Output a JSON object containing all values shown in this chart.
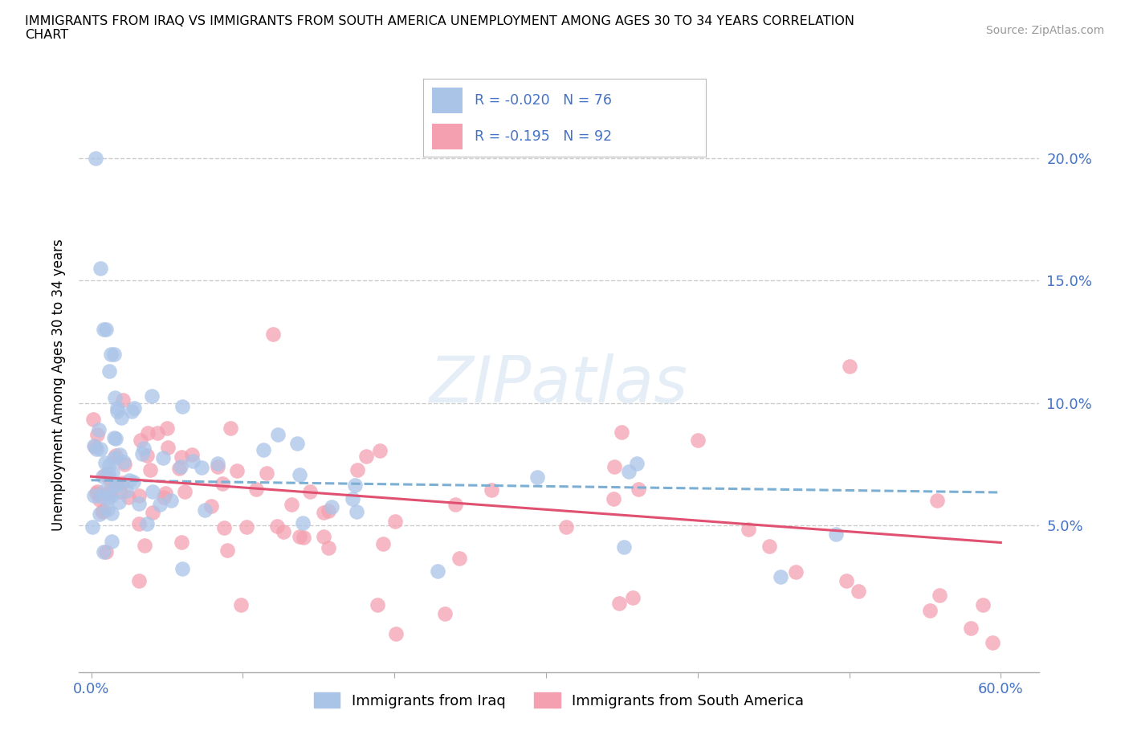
{
  "title_line1": "IMMIGRANTS FROM IRAQ VS IMMIGRANTS FROM SOUTH AMERICA UNEMPLOYMENT AMONG AGES 30 TO 34 YEARS CORRELATION",
  "title_line2": "CHART",
  "source_text": "Source: ZipAtlas.com",
  "ylabel": "Unemployment Among Ages 30 to 34 years",
  "iraq_color": "#7bafd4",
  "iraq_color_scatter": "#aac4e8",
  "south_america_color": "#f4a0b0",
  "south_america_color_scatter": "#f4a0b0",
  "iraq_label": "Immigrants from Iraq",
  "south_america_label": "Immigrants from South America",
  "iraq_R": -0.02,
  "iraq_N": 76,
  "south_america_R": -0.195,
  "south_america_N": 92,
  "iraq_trend_color": "#7bafd4",
  "sa_trend_color": "#e05070",
  "watermark_color": "#d0e0f0",
  "legend_text_color": "#4472c4",
  "axis_tick_color": "#4472c4",
  "grid_color": "#cccccc",
  "title_fontsize": 11.5,
  "tick_fontsize": 13,
  "ylabel_fontsize": 12
}
